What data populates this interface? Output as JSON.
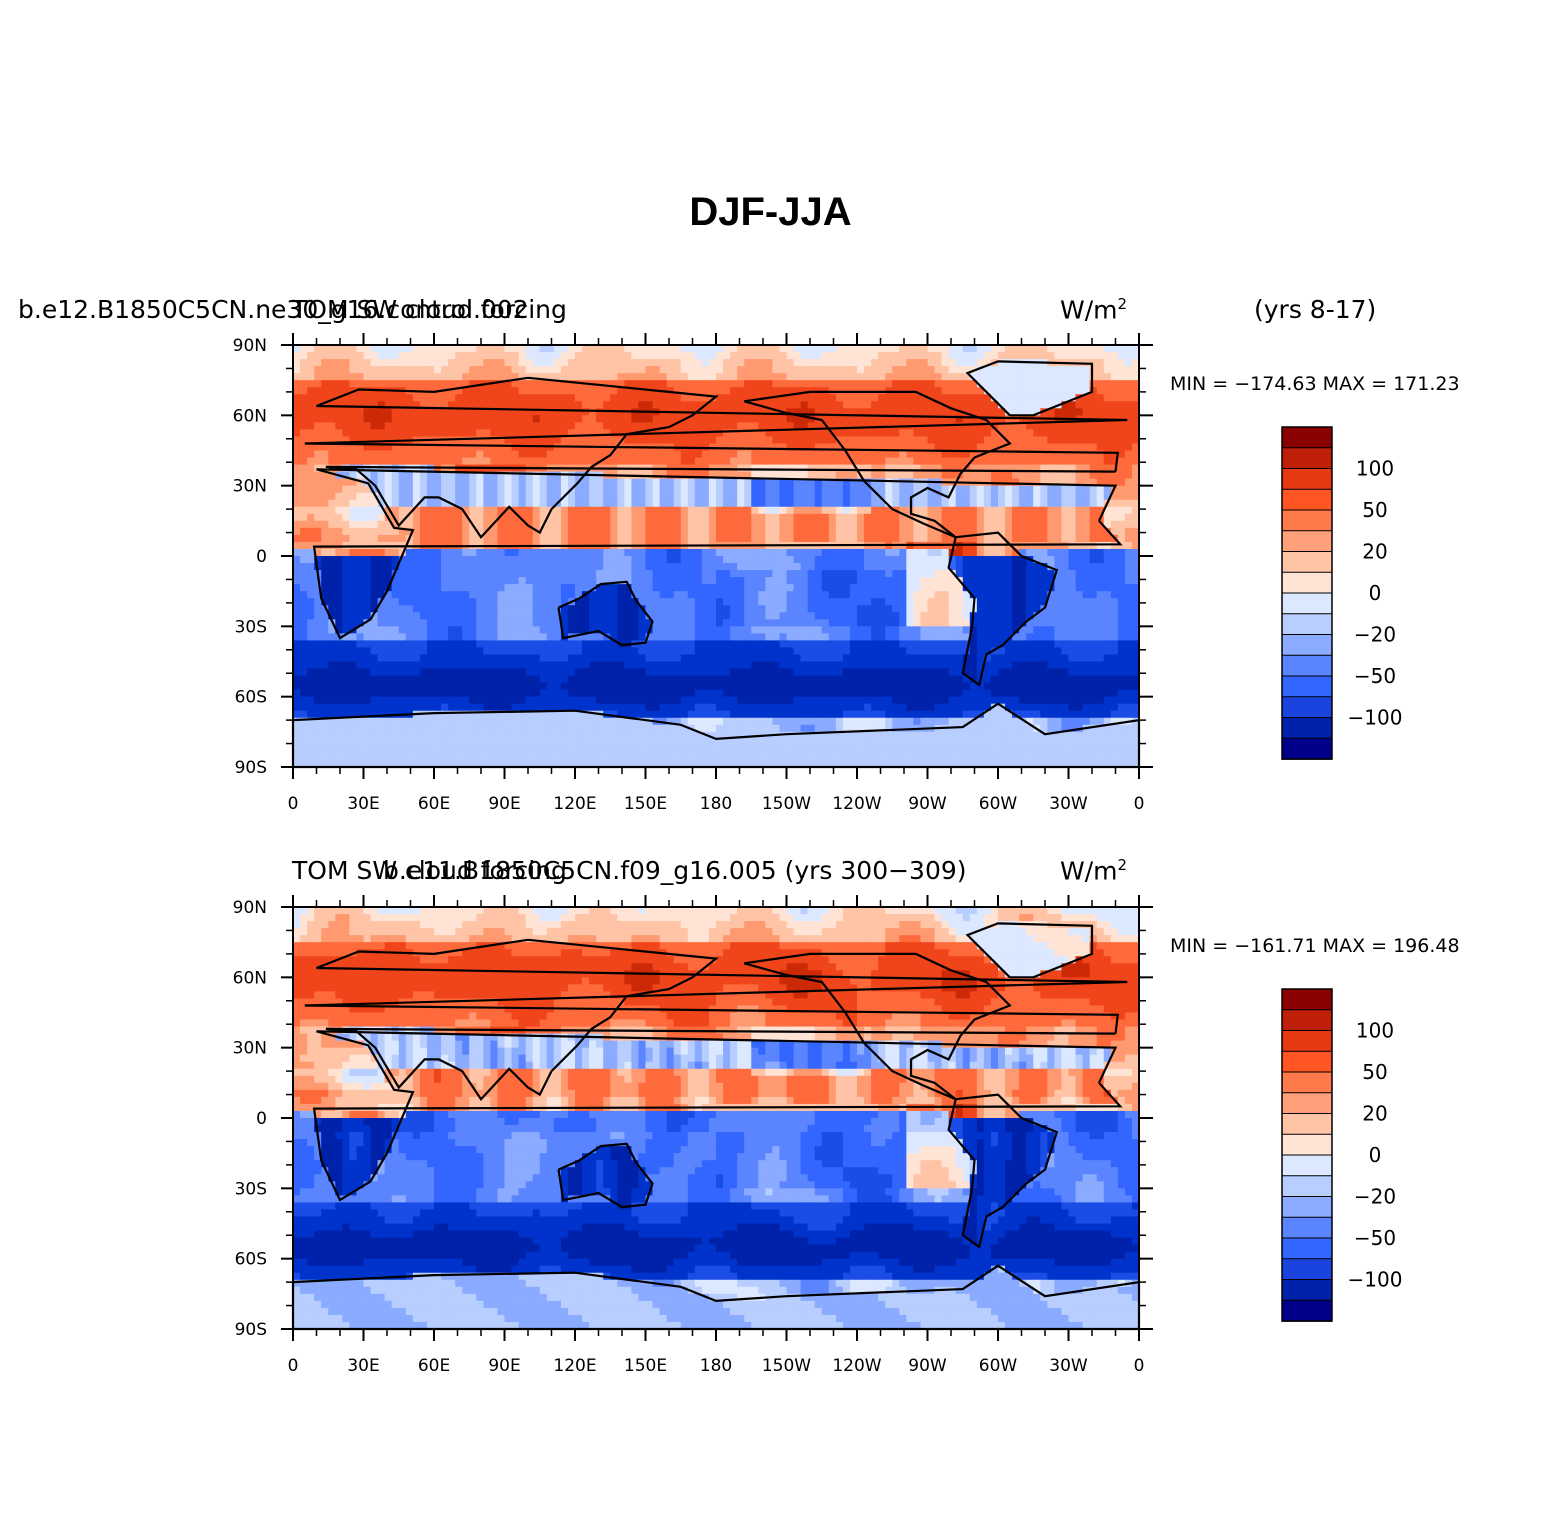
{
  "title": "DJF-JJA",
  "chart_data": [
    {
      "type": "heatmap",
      "panel": "top",
      "left_label": "b.e12.B1850C5CN.ne30_g16.control.002",
      "center_label": "TOM SW cloud forcing",
      "units_base": "W/m",
      "units_exp": "2",
      "right_label": "(yrs 8-17)",
      "min_label": "MIN = −174.63",
      "max_label": "MAX = 171.23",
      "min": -174.63,
      "max": 171.23,
      "x_ticks": [
        "0",
        "30E",
        "60E",
        "90E",
        "120E",
        "150E",
        "180",
        "150W",
        "120W",
        "90W",
        "60W",
        "30W",
        "0"
      ],
      "y_ticks": [
        "90N",
        "60N",
        "30N",
        "0",
        "30S",
        "60S",
        "90S"
      ],
      "colorbar_labels": [
        "100",
        "50",
        "20",
        "0",
        "−20",
        "−50",
        "−100"
      ],
      "contour_levels": [
        -150,
        -100,
        -75,
        -50,
        -35,
        -20,
        -10,
        0,
        10,
        20,
        35,
        50,
        75,
        100,
        150
      ]
    },
    {
      "type": "heatmap",
      "panel": "bottom",
      "left_label": "TOM SW cloud forcing",
      "center_label": "b.e11.B1850C5CN.f09_g16.005 (yrs 300−309)",
      "units_base": "W/m",
      "units_exp": "2",
      "min_label": "MIN = −161.71",
      "max_label": "MAX = 196.48",
      "min": -161.71,
      "max": 196.48,
      "x_ticks": [
        "0",
        "30E",
        "60E",
        "90E",
        "120E",
        "150E",
        "180",
        "150W",
        "120W",
        "90W",
        "60W",
        "30W",
        "0"
      ],
      "y_ticks": [
        "90N",
        "60N",
        "30N",
        "0",
        "30S",
        "60S",
        "90S"
      ],
      "colorbar_labels": [
        "100",
        "50",
        "20",
        "0",
        "−20",
        "−50",
        "−100"
      ],
      "contour_levels": [
        -150,
        -100,
        -75,
        -50,
        -35,
        -20,
        -10,
        0,
        10,
        20,
        35,
        50,
        75,
        100,
        150
      ]
    }
  ],
  "colors": {
    "palette": [
      "#00008b",
      "#0022aa",
      "#0033cc",
      "#1a4de6",
      "#3366ff",
      "#5b85ff",
      "#8aabff",
      "#b8ceff",
      "#dbe8ff",
      "#ffe4d6",
      "#ffc3a6",
      "#ff9a70",
      "#ff6a3c",
      "#f0451a",
      "#cc2a06",
      "#8b0000"
    ],
    "colorbar": [
      "#8b0000",
      "#c0200a",
      "#e83a12",
      "#ff5522",
      "#ff7a4a",
      "#ffa07a",
      "#ffc3a6",
      "#ffe4d6",
      "#dbe8ff",
      "#b8ceff",
      "#8aabff",
      "#5b85ff",
      "#3366ff",
      "#1a44dd",
      "#0022aa",
      "#00008b"
    ],
    "land_outline": "#000000"
  }
}
